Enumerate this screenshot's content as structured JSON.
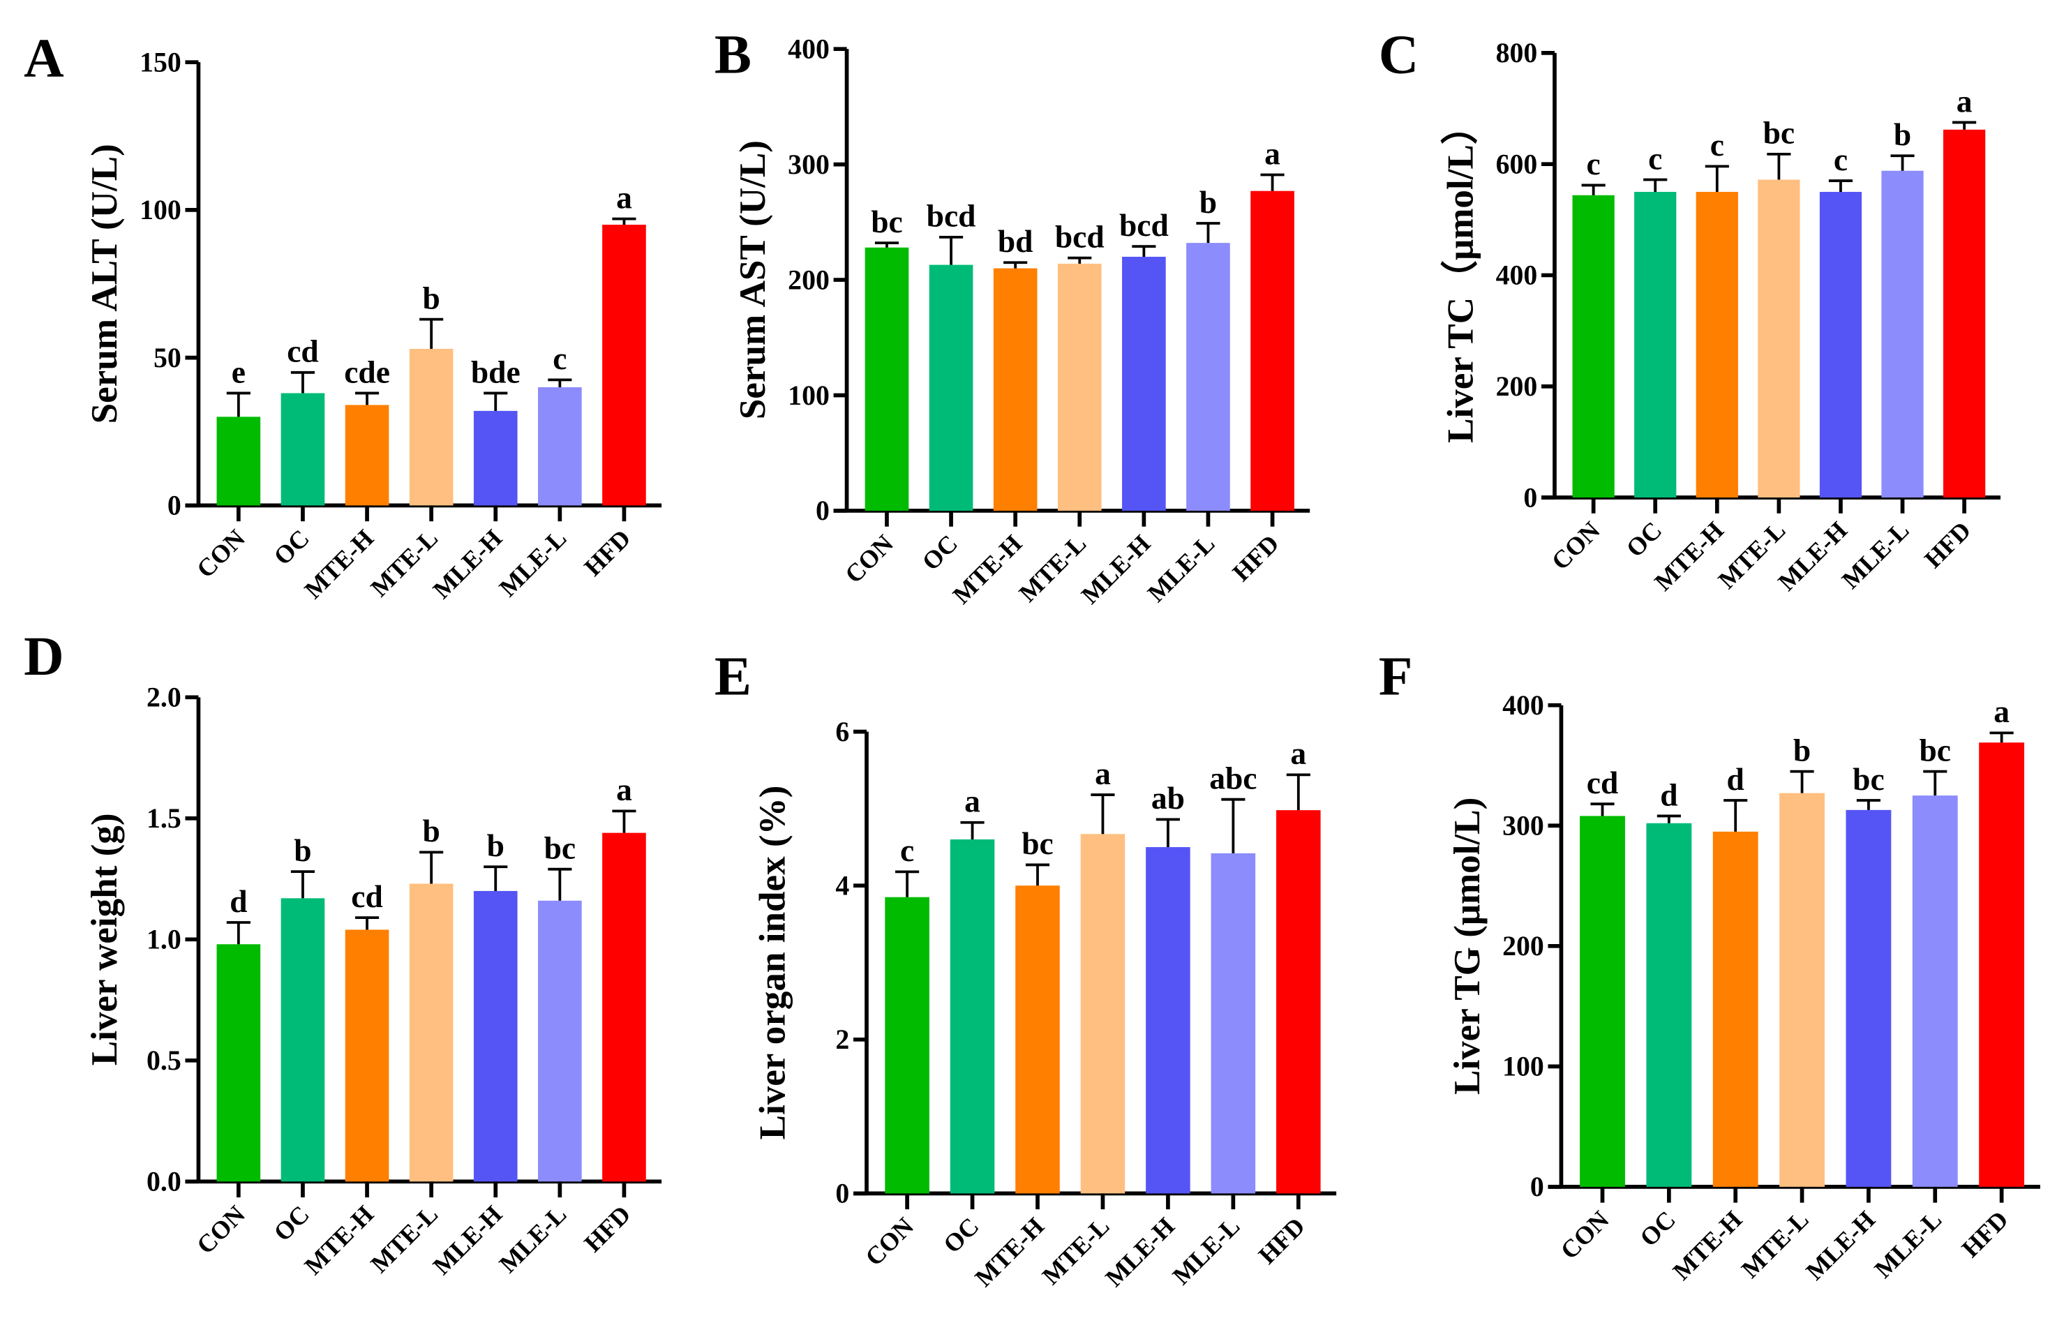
{
  "chart_data": [
    {
      "type": "bar",
      "panel": "A",
      "ylabel": "Serum ALT (U/L)",
      "ylim": [
        0,
        150
      ],
      "yticks": [
        0,
        50,
        100,
        150
      ],
      "categories": [
        "CON",
        "OC",
        "MTE-H",
        "MTE-L",
        "MLE-H",
        "MLE-L",
        "HFD"
      ],
      "values": [
        30,
        38,
        34,
        53,
        32,
        40,
        95
      ],
      "errors": [
        8,
        7,
        4,
        10,
        6,
        2.5,
        2
      ],
      "letters": [
        "e",
        "cd",
        "cde",
        "b",
        "bde",
        "c",
        "a"
      ]
    },
    {
      "type": "bar",
      "panel": "B",
      "ylabel": "Serum AST (U/L)",
      "ylim": [
        0,
        400
      ],
      "yticks": [
        0,
        100,
        200,
        300,
        400
      ],
      "categories": [
        "CON",
        "OC",
        "MTE-H",
        "MTE-L",
        "MLE-H",
        "MLE-L",
        "HFD"
      ],
      "values": [
        228,
        213,
        210,
        214,
        220,
        232,
        277
      ],
      "errors": [
        4,
        24,
        5,
        5,
        9,
        17,
        14
      ],
      "letters": [
        "bc",
        "bcd",
        "bd",
        "bcd",
        "bcd",
        "b",
        "a"
      ]
    },
    {
      "type": "bar",
      "panel": "C",
      "ylabel": "Liver TC（μmol/L）",
      "ylim": [
        0,
        800
      ],
      "yticks": [
        0,
        200,
        400,
        600,
        800
      ],
      "categories": [
        "CON",
        "OC",
        "MTE-H",
        "MTE-L",
        "MLE-H",
        "MLE-L",
        "HFD"
      ],
      "values": [
        544,
        550,
        550,
        572,
        550,
        588,
        662
      ],
      "errors": [
        18,
        22,
        46,
        46,
        20,
        27,
        13
      ],
      "letters": [
        "c",
        "c",
        "c",
        "bc",
        "c",
        "b",
        "a"
      ]
    },
    {
      "type": "bar",
      "panel": "D",
      "ylabel": "Liver weight (g)",
      "ylim": [
        0,
        2
      ],
      "yticks": [
        "0.0",
        "0.5",
        "1.0",
        "1.5",
        "2.0"
      ],
      "categories": [
        "CON",
        "OC",
        "MTE-H",
        "MTE-L",
        "MLE-H",
        "MLE-L",
        "HFD"
      ],
      "values": [
        0.98,
        1.17,
        1.04,
        1.23,
        1.2,
        1.16,
        1.44
      ],
      "errors": [
        0.09,
        0.11,
        0.05,
        0.13,
        0.1,
        0.13,
        0.09
      ],
      "letters": [
        "d",
        "b",
        "cd",
        "b",
        "b",
        "bc",
        "a"
      ]
    },
    {
      "type": "bar",
      "panel": "E",
      "ylabel": "Liver organ index (%)",
      "ylim": [
        0,
        6
      ],
      "yticks": [
        0,
        2,
        4,
        6
      ],
      "categories": [
        "CON",
        "OC",
        "MTE-H",
        "MTE-L",
        "MLE-H",
        "MLE-L",
        "HFD"
      ],
      "values": [
        3.85,
        4.6,
        4.0,
        4.67,
        4.5,
        4.42,
        4.98
      ],
      "errors": [
        0.33,
        0.22,
        0.27,
        0.51,
        0.36,
        0.7,
        0.46
      ],
      "letters": [
        "c",
        "a",
        "bc",
        "a",
        "ab",
        "abc",
        "a"
      ]
    },
    {
      "type": "bar",
      "panel": "F",
      "ylabel": "Liver TG (μmol/L)",
      "ylim": [
        0,
        400
      ],
      "yticks": [
        0,
        100,
        200,
        300,
        400
      ],
      "categories": [
        "CON",
        "OC",
        "MTE-H",
        "MTE-L",
        "MLE-H",
        "MLE-L",
        "HFD"
      ],
      "values": [
        308,
        302,
        295,
        327,
        313,
        325,
        369
      ],
      "errors": [
        10,
        6,
        26,
        18,
        8,
        20,
        8
      ],
      "letters": [
        "cd",
        "d",
        "d",
        "b",
        "bc",
        "bc",
        "a"
      ]
    }
  ],
  "colors": [
    "#00bb00",
    "#00bb77",
    "#ff7f00",
    "#ffbf80",
    "#5555f5",
    "#8c8cfc",
    "#ff0000"
  ]
}
